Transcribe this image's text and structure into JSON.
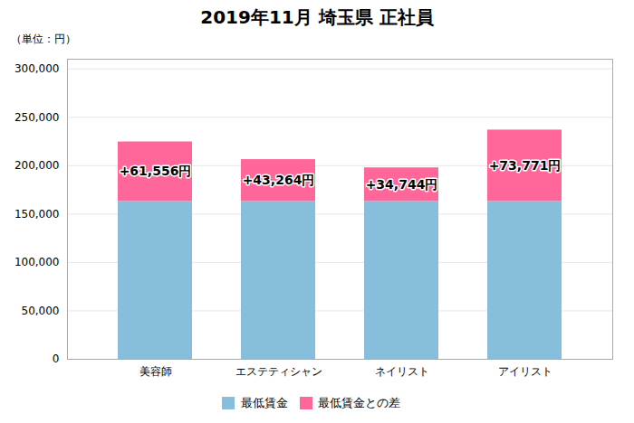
{
  "chart_data": {
    "type": "bar",
    "stacked": true,
    "title": "2019年11月 埼玉県 正社員",
    "ylabel": "（単位：円）",
    "categories": [
      "美容師",
      "エステティシャン",
      "ネイリスト",
      "アイリスト"
    ],
    "series": [
      {
        "name": "最低賃金",
        "color": "#87BEDC",
        "values": [
          163000,
          163000,
          163000,
          163000
        ]
      },
      {
        "name": "最低賃金との差",
        "color": "#FF6699",
        "values": [
          61556,
          43264,
          34744,
          73771
        ],
        "value_labels": [
          "+61,556円",
          "+43,264円",
          "+34,744円",
          "+73,771円"
        ]
      }
    ],
    "data_labels": true,
    "ylim": [
      0,
      310000
    ],
    "yticks": [
      0,
      {
        "value": 50000,
        "label": "50,000"
      },
      {
        "value": 100000,
        "label": "100,000"
      },
      {
        "value": 150000,
        "label": "150,000"
      },
      {
        "value": 200000,
        "label": "200,000"
      },
      {
        "value": 250000,
        "label": "250,000"
      },
      {
        "value": 300000,
        "label": "300,000"
      }
    ],
    "grid": true,
    "legend": "bottom"
  }
}
